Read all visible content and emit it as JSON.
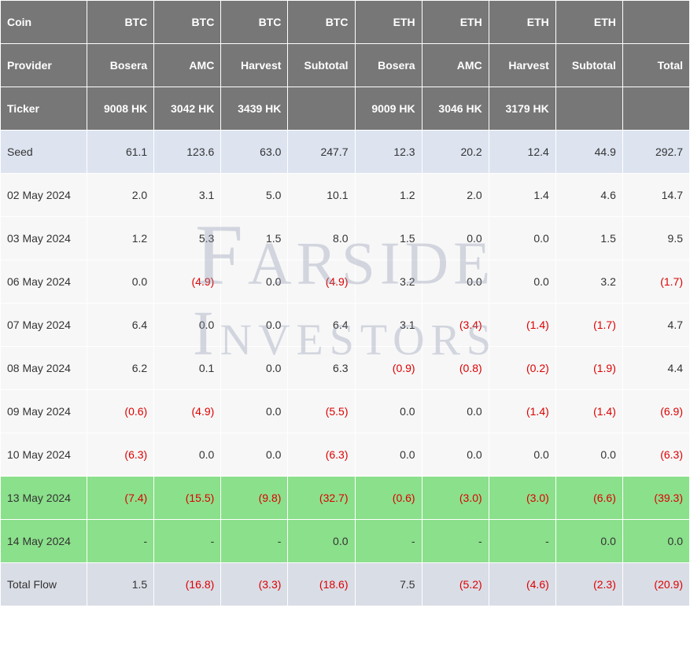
{
  "watermark": {
    "line1": "Farside",
    "line2": "Investors"
  },
  "colors": {
    "header_bg": "#777777",
    "header_text": "#ffffff",
    "seed_bg": "#dde4f0",
    "data_bg": "#f7f7f7",
    "highlight_bg": "#8be08b",
    "total_bg": "#d9dde6",
    "negative_text": "#dd0000",
    "text": "#333333",
    "border": "#ffffff"
  },
  "header": {
    "coin_label": "Coin",
    "provider_label": "Provider",
    "ticker_label": "Ticker",
    "coins": [
      "BTC",
      "BTC",
      "BTC",
      "BTC",
      "ETH",
      "ETH",
      "ETH",
      "ETH",
      ""
    ],
    "providers": [
      "Bosera",
      "AMC",
      "Harvest",
      "Subtotal",
      "Bosera",
      "AMC",
      "Harvest",
      "Subtotal",
      "Total"
    ],
    "tickers": [
      "9008 HK",
      "3042 HK",
      "3439 HK",
      "",
      "9009 HK",
      "3046 HK",
      "3179 HK",
      "",
      ""
    ]
  },
  "rows": [
    {
      "type": "seed",
      "label": "Seed",
      "cells": [
        {
          "t": "61.1"
        },
        {
          "t": "123.6"
        },
        {
          "t": "63.0"
        },
        {
          "t": "247.7"
        },
        {
          "t": "12.3"
        },
        {
          "t": "20.2"
        },
        {
          "t": "12.4"
        },
        {
          "t": "44.9"
        },
        {
          "t": "292.7"
        }
      ]
    },
    {
      "type": "data",
      "label": "02 May 2024",
      "cells": [
        {
          "t": "2.0"
        },
        {
          "t": "3.1"
        },
        {
          "t": "5.0"
        },
        {
          "t": "10.1"
        },
        {
          "t": "1.2"
        },
        {
          "t": "2.0"
        },
        {
          "t": "1.4"
        },
        {
          "t": "4.6"
        },
        {
          "t": "14.7"
        }
      ]
    },
    {
      "type": "data",
      "label": "03 May 2024",
      "cells": [
        {
          "t": "1.2"
        },
        {
          "t": "5.3"
        },
        {
          "t": "1.5"
        },
        {
          "t": "8.0"
        },
        {
          "t": "1.5"
        },
        {
          "t": "0.0"
        },
        {
          "t": "0.0"
        },
        {
          "t": "1.5"
        },
        {
          "t": "9.5"
        }
      ]
    },
    {
      "type": "data",
      "label": "06 May 2024",
      "cells": [
        {
          "t": "0.0"
        },
        {
          "t": "(4.9)",
          "neg": true
        },
        {
          "t": "0.0"
        },
        {
          "t": "(4.9)",
          "neg": true
        },
        {
          "t": "3.2"
        },
        {
          "t": "0.0"
        },
        {
          "t": "0.0"
        },
        {
          "t": "3.2"
        },
        {
          "t": "(1.7)",
          "neg": true
        }
      ]
    },
    {
      "type": "data",
      "label": "07 May 2024",
      "cells": [
        {
          "t": "6.4"
        },
        {
          "t": "0.0"
        },
        {
          "t": "0.0"
        },
        {
          "t": "6.4"
        },
        {
          "t": "3.1"
        },
        {
          "t": "(3.4)",
          "neg": true
        },
        {
          "t": "(1.4)",
          "neg": true
        },
        {
          "t": "(1.7)",
          "neg": true
        },
        {
          "t": "4.7"
        }
      ]
    },
    {
      "type": "data",
      "label": "08 May 2024",
      "cells": [
        {
          "t": "6.2"
        },
        {
          "t": "0.1"
        },
        {
          "t": "0.0"
        },
        {
          "t": "6.3"
        },
        {
          "t": "(0.9)",
          "neg": true
        },
        {
          "t": "(0.8)",
          "neg": true
        },
        {
          "t": "(0.2)",
          "neg": true
        },
        {
          "t": "(1.9)",
          "neg": true
        },
        {
          "t": "4.4"
        }
      ]
    },
    {
      "type": "data",
      "label": "09 May 2024",
      "cells": [
        {
          "t": "(0.6)",
          "neg": true
        },
        {
          "t": "(4.9)",
          "neg": true
        },
        {
          "t": "0.0"
        },
        {
          "t": "(5.5)",
          "neg": true
        },
        {
          "t": "0.0"
        },
        {
          "t": "0.0"
        },
        {
          "t": "(1.4)",
          "neg": true
        },
        {
          "t": "(1.4)",
          "neg": true
        },
        {
          "t": "(6.9)",
          "neg": true
        }
      ]
    },
    {
      "type": "data",
      "label": "10 May 2024",
      "cells": [
        {
          "t": "(6.3)",
          "neg": true
        },
        {
          "t": "0.0"
        },
        {
          "t": "0.0"
        },
        {
          "t": "(6.3)",
          "neg": true
        },
        {
          "t": "0.0"
        },
        {
          "t": "0.0"
        },
        {
          "t": "0.0"
        },
        {
          "t": "0.0"
        },
        {
          "t": "(6.3)",
          "neg": true
        }
      ]
    },
    {
      "type": "hl",
      "label": "13 May 2024",
      "cells": [
        {
          "t": "(7.4)",
          "neg": true
        },
        {
          "t": "(15.5)",
          "neg": true
        },
        {
          "t": "(9.8)",
          "neg": true
        },
        {
          "t": "(32.7)",
          "neg": true
        },
        {
          "t": "(0.6)",
          "neg": true
        },
        {
          "t": "(3.0)",
          "neg": true
        },
        {
          "t": "(3.0)",
          "neg": true
        },
        {
          "t": "(6.6)",
          "neg": true
        },
        {
          "t": "(39.3)",
          "neg": true
        }
      ]
    },
    {
      "type": "hl",
      "label": "14 May 2024",
      "cells": [
        {
          "t": "-"
        },
        {
          "t": "-"
        },
        {
          "t": "-"
        },
        {
          "t": "0.0"
        },
        {
          "t": "-"
        },
        {
          "t": "-"
        },
        {
          "t": "-"
        },
        {
          "t": "0.0"
        },
        {
          "t": "0.0"
        }
      ]
    },
    {
      "type": "total",
      "label": "Total Flow",
      "cells": [
        {
          "t": "1.5"
        },
        {
          "t": "(16.8)",
          "neg": true
        },
        {
          "t": "(3.3)",
          "neg": true
        },
        {
          "t": "(18.6)",
          "neg": true
        },
        {
          "t": "7.5"
        },
        {
          "t": "(5.2)",
          "neg": true
        },
        {
          "t": "(4.6)",
          "neg": true
        },
        {
          "t": "(2.3)",
          "neg": true
        },
        {
          "t": "(20.9)",
          "neg": true
        }
      ]
    }
  ]
}
